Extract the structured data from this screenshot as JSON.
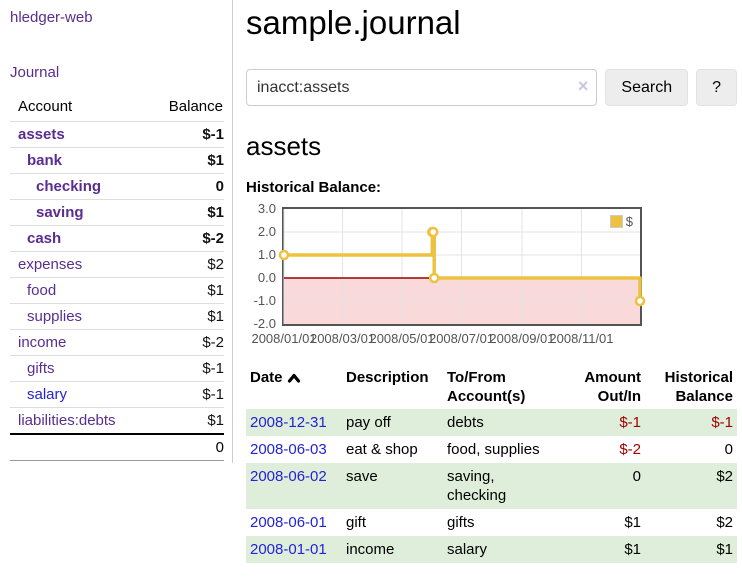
{
  "app": {
    "title": "hledger-web"
  },
  "sidebar": {
    "journal_link": "Journal",
    "accounts_table": {
      "headers": {
        "account": "Account",
        "balance": "Balance"
      },
      "rows": [
        {
          "name": "assets",
          "depth": 0,
          "bold": true,
          "link_color": "purple",
          "balance": "$-1",
          "balance_tone": "neg-strong"
        },
        {
          "name": "bank",
          "depth": 1,
          "bold": true,
          "link_color": "purple",
          "balance": "$1",
          "balance_tone": "plain"
        },
        {
          "name": "checking",
          "depth": 2,
          "bold": true,
          "link_color": "purple",
          "balance": "0",
          "balance_tone": "plain"
        },
        {
          "name": "saving",
          "depth": 2,
          "bold": true,
          "link_color": "purple",
          "balance": "$1",
          "balance_tone": "plain"
        },
        {
          "name": "cash",
          "depth": 1,
          "bold": true,
          "link_color": "purple",
          "balance": "$-2",
          "balance_tone": "neg-strong"
        },
        {
          "name": "expenses",
          "depth": 0,
          "bold": false,
          "link_color": "purple",
          "balance": "$2",
          "balance_tone": "plain"
        },
        {
          "name": "food",
          "depth": 1,
          "bold": false,
          "link_color": "purple",
          "balance": "$1",
          "balance_tone": "plain"
        },
        {
          "name": "supplies",
          "depth": 1,
          "bold": false,
          "link_color": "purple",
          "balance": "$1",
          "balance_tone": "plain"
        },
        {
          "name": "income",
          "depth": 0,
          "bold": false,
          "link_color": "purple",
          "balance": "$-2",
          "balance_tone": "neg-soft"
        },
        {
          "name": "gifts",
          "depth": 1,
          "bold": false,
          "link_color": "purple",
          "balance": "$-1",
          "balance_tone": "neg-soft"
        },
        {
          "name": "salary",
          "depth": 1,
          "bold": false,
          "link_color": "blue",
          "balance": "$-1",
          "balance_tone": "neg-soft"
        },
        {
          "name": "liabilities:debts",
          "depth": 0,
          "bold": false,
          "link_color": "purple",
          "balance": "$1",
          "balance_tone": "plain"
        }
      ],
      "total": "0"
    }
  },
  "header": {
    "title": "sample.journal"
  },
  "search": {
    "value": "inacct:assets",
    "clear_icon": "×",
    "button": "Search",
    "help_button": "?"
  },
  "account_page": {
    "title": "assets",
    "chart_label": "Historical Balance:"
  },
  "chart_data": {
    "type": "line",
    "step": true,
    "title": "Historical Balance:",
    "xmin": "2008-01-01",
    "xmax": "2008-12-31",
    "ylim": [
      -2,
      3
    ],
    "yticks": [
      3,
      2,
      1,
      0,
      -1,
      -2
    ],
    "xtick_dates": [
      "2008-01-01",
      "2008-03-01",
      "2008-05-01",
      "2008-07-01",
      "2008-09-01",
      "2008-11-01"
    ],
    "xtick_labels": [
      "2008/01/01",
      "2008/03/01",
      "2008/05/01",
      "2008/07/01",
      "2008/09/01",
      "2008/11/01"
    ],
    "series": [
      {
        "name": "$",
        "color": "#edc240",
        "points": [
          [
            "2008-01-01",
            1
          ],
          [
            "2008-06-01",
            2
          ],
          [
            "2008-06-02",
            2
          ],
          [
            "2008-06-03",
            0
          ],
          [
            "2008-12-31",
            -1
          ]
        ]
      }
    ],
    "legend_position": "top-right",
    "grid": true,
    "grid_color": "#e3e3e3",
    "axis_color": "#545454",
    "zero_line_color": "#990000",
    "negative_region_color": "#f9d9d9"
  },
  "register": {
    "headers": {
      "date": "Date",
      "description": "Description",
      "accounts": "To/From Account(s)",
      "amount": "Amount Out/In",
      "balance": "Historical Balance"
    },
    "rows": [
      {
        "date": "2008-12-31",
        "description": "pay off",
        "accounts": "debts",
        "amount": "$-1",
        "amount_negative": true,
        "balance": "$-1",
        "balance_negative": true
      },
      {
        "date": "2008-06-03",
        "description": "eat & shop",
        "accounts": "food, supplies",
        "amount": "$-2",
        "amount_negative": true,
        "balance": "0",
        "balance_negative": false
      },
      {
        "date": "2008-06-02",
        "description": "save",
        "accounts": "saving, checking",
        "amount": "0",
        "amount_negative": false,
        "balance": "$2",
        "balance_negative": false
      },
      {
        "date": "2008-06-01",
        "description": "gift",
        "accounts": "gifts",
        "amount": "$1",
        "amount_negative": false,
        "balance": "$2",
        "balance_negative": false
      },
      {
        "date": "2008-01-01",
        "description": "income",
        "accounts": "salary",
        "amount": "$1",
        "amount_negative": false,
        "balance": "$1",
        "balance_negative": false
      }
    ]
  },
  "colors": {
    "link_purple": "#5b2d90",
    "link_blue": "#2323d3",
    "negative_strong": "#a40000",
    "negative_soft": "#c47e7e",
    "row_stripe_green": "#dfeeda",
    "chart_line": "#edc240",
    "chart_zero_line": "#990000",
    "chart_negative_fill": "#f9d9d9"
  }
}
